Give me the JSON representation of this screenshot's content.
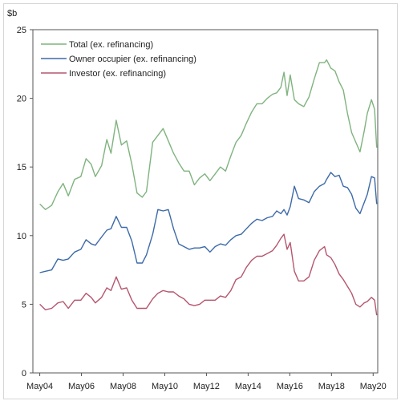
{
  "chart_data": {
    "type": "line",
    "ylabel": "$b",
    "ylim": [
      0,
      25
    ],
    "yticks": [
      0,
      5,
      10,
      15,
      20,
      25
    ],
    "xlim": [
      2004.0,
      2020.55
    ],
    "xticks": [
      {
        "x": 2004.33,
        "label": "May04"
      },
      {
        "x": 2006.33,
        "label": "May06"
      },
      {
        "x": 2008.33,
        "label": "May08"
      },
      {
        "x": 2010.33,
        "label": "May10"
      },
      {
        "x": 2012.33,
        "label": "May12"
      },
      {
        "x": 2014.33,
        "label": "May14"
      },
      {
        "x": 2016.33,
        "label": "May16"
      },
      {
        "x": 2018.33,
        "label": "May18"
      },
      {
        "x": 2020.33,
        "label": "May20"
      }
    ],
    "grid": false,
    "legend": "top-left",
    "series": [
      {
        "name": "Total (ex. refinancing)",
        "color": "#7fb37f",
        "points": [
          [
            2004.33,
            12.3
          ],
          [
            2004.6,
            11.9
          ],
          [
            2004.9,
            12.2
          ],
          [
            2005.2,
            13.2
          ],
          [
            2005.45,
            13.8
          ],
          [
            2005.7,
            12.9
          ],
          [
            2006.0,
            14.1
          ],
          [
            2006.3,
            14.3
          ],
          [
            2006.55,
            15.6
          ],
          [
            2006.8,
            15.2
          ],
          [
            2007.0,
            14.3
          ],
          [
            2007.3,
            15.1
          ],
          [
            2007.55,
            17.0
          ],
          [
            2007.75,
            16.0
          ],
          [
            2008.0,
            18.4
          ],
          [
            2008.25,
            16.6
          ],
          [
            2008.5,
            16.9
          ],
          [
            2008.75,
            15.2
          ],
          [
            2009.0,
            13.1
          ],
          [
            2009.25,
            12.8
          ],
          [
            2009.45,
            13.2
          ],
          [
            2009.75,
            16.8
          ],
          [
            2010.0,
            17.3
          ],
          [
            2010.25,
            17.8
          ],
          [
            2010.5,
            16.9
          ],
          [
            2010.75,
            16.0
          ],
          [
            2011.0,
            15.3
          ],
          [
            2011.25,
            14.7
          ],
          [
            2011.5,
            14.7
          ],
          [
            2011.75,
            13.7
          ],
          [
            2012.0,
            14.2
          ],
          [
            2012.25,
            14.5
          ],
          [
            2012.5,
            14.0
          ],
          [
            2012.75,
            14.5
          ],
          [
            2013.0,
            15.0
          ],
          [
            2013.25,
            14.7
          ],
          [
            2013.5,
            15.8
          ],
          [
            2013.75,
            16.8
          ],
          [
            2014.0,
            17.3
          ],
          [
            2014.25,
            18.2
          ],
          [
            2014.5,
            19.0
          ],
          [
            2014.75,
            19.6
          ],
          [
            2015.0,
            19.6
          ],
          [
            2015.25,
            20.0
          ],
          [
            2015.5,
            20.3
          ],
          [
            2015.7,
            20.4
          ],
          [
            2015.9,
            20.8
          ],
          [
            2016.05,
            21.9
          ],
          [
            2016.2,
            20.2
          ],
          [
            2016.35,
            21.7
          ],
          [
            2016.55,
            19.9
          ],
          [
            2016.75,
            19.6
          ],
          [
            2017.0,
            19.4
          ],
          [
            2017.25,
            20.1
          ],
          [
            2017.5,
            21.4
          ],
          [
            2017.75,
            22.6
          ],
          [
            2018.0,
            22.6
          ],
          [
            2018.1,
            22.8
          ],
          [
            2018.3,
            22.2
          ],
          [
            2018.5,
            22.0
          ],
          [
            2018.7,
            21.2
          ],
          [
            2018.9,
            20.6
          ],
          [
            2019.1,
            18.9
          ],
          [
            2019.3,
            17.5
          ],
          [
            2019.5,
            16.8
          ],
          [
            2019.7,
            16.1
          ],
          [
            2019.9,
            17.6
          ],
          [
            2020.05,
            18.9
          ],
          [
            2020.25,
            19.9
          ],
          [
            2020.4,
            19.2
          ],
          [
            2020.5,
            16.4
          ]
        ]
      },
      {
        "name": "Owner occupier (ex. refinancing)",
        "color": "#3d6aa8",
        "points": [
          [
            2004.33,
            7.3
          ],
          [
            2004.6,
            7.4
          ],
          [
            2004.9,
            7.5
          ],
          [
            2005.2,
            8.3
          ],
          [
            2005.45,
            8.2
          ],
          [
            2005.7,
            8.3
          ],
          [
            2006.0,
            8.8
          ],
          [
            2006.3,
            9.0
          ],
          [
            2006.55,
            9.7
          ],
          [
            2006.8,
            9.4
          ],
          [
            2007.0,
            9.3
          ],
          [
            2007.3,
            9.9
          ],
          [
            2007.55,
            10.4
          ],
          [
            2007.75,
            10.5
          ],
          [
            2008.0,
            11.4
          ],
          [
            2008.25,
            10.6
          ],
          [
            2008.5,
            10.6
          ],
          [
            2008.75,
            9.6
          ],
          [
            2009.0,
            8.0
          ],
          [
            2009.25,
            8.0
          ],
          [
            2009.45,
            8.6
          ],
          [
            2009.75,
            10.1
          ],
          [
            2010.0,
            11.9
          ],
          [
            2010.25,
            11.8
          ],
          [
            2010.5,
            11.9
          ],
          [
            2010.75,
            10.5
          ],
          [
            2011.0,
            9.4
          ],
          [
            2011.25,
            9.2
          ],
          [
            2011.5,
            9.0
          ],
          [
            2011.75,
            9.1
          ],
          [
            2012.0,
            9.1
          ],
          [
            2012.25,
            9.2
          ],
          [
            2012.5,
            8.8
          ],
          [
            2012.75,
            9.2
          ],
          [
            2013.0,
            9.4
          ],
          [
            2013.25,
            9.3
          ],
          [
            2013.5,
            9.7
          ],
          [
            2013.75,
            10.0
          ],
          [
            2014.0,
            10.1
          ],
          [
            2014.25,
            10.5
          ],
          [
            2014.5,
            10.9
          ],
          [
            2014.75,
            11.2
          ],
          [
            2015.0,
            11.1
          ],
          [
            2015.25,
            11.3
          ],
          [
            2015.5,
            11.4
          ],
          [
            2015.7,
            11.8
          ],
          [
            2015.9,
            11.6
          ],
          [
            2016.05,
            11.9
          ],
          [
            2016.2,
            11.5
          ],
          [
            2016.35,
            12.1
          ],
          [
            2016.55,
            13.6
          ],
          [
            2016.75,
            12.7
          ],
          [
            2017.0,
            12.6
          ],
          [
            2017.25,
            12.4
          ],
          [
            2017.5,
            13.2
          ],
          [
            2017.75,
            13.6
          ],
          [
            2018.0,
            13.8
          ],
          [
            2018.1,
            14.1
          ],
          [
            2018.3,
            14.6
          ],
          [
            2018.5,
            14.3
          ],
          [
            2018.7,
            14.4
          ],
          [
            2018.9,
            13.6
          ],
          [
            2019.1,
            13.5
          ],
          [
            2019.3,
            13.0
          ],
          [
            2019.5,
            12.0
          ],
          [
            2019.7,
            11.6
          ],
          [
            2019.9,
            12.4
          ],
          [
            2020.05,
            13.0
          ],
          [
            2020.25,
            14.3
          ],
          [
            2020.4,
            14.2
          ],
          [
            2020.5,
            12.3
          ]
        ]
      },
      {
        "name": "Investor (ex. refinancing)",
        "color": "#b5566e",
        "points": [
          [
            2004.33,
            5.0
          ],
          [
            2004.6,
            4.6
          ],
          [
            2004.9,
            4.7
          ],
          [
            2005.2,
            5.1
          ],
          [
            2005.45,
            5.2
          ],
          [
            2005.7,
            4.7
          ],
          [
            2006.0,
            5.3
          ],
          [
            2006.3,
            5.3
          ],
          [
            2006.55,
            5.8
          ],
          [
            2006.8,
            5.5
          ],
          [
            2007.0,
            5.1
          ],
          [
            2007.3,
            5.5
          ],
          [
            2007.55,
            6.2
          ],
          [
            2007.75,
            6.0
          ],
          [
            2008.0,
            7.0
          ],
          [
            2008.25,
            6.1
          ],
          [
            2008.5,
            6.2
          ],
          [
            2008.75,
            5.3
          ],
          [
            2009.0,
            4.7
          ],
          [
            2009.25,
            4.7
          ],
          [
            2009.45,
            4.7
          ],
          [
            2009.75,
            5.4
          ],
          [
            2010.0,
            5.8
          ],
          [
            2010.25,
            6.0
          ],
          [
            2010.5,
            5.9
          ],
          [
            2010.75,
            5.9
          ],
          [
            2011.0,
            5.6
          ],
          [
            2011.25,
            5.4
          ],
          [
            2011.5,
            5.0
          ],
          [
            2011.75,
            4.9
          ],
          [
            2012.0,
            5.0
          ],
          [
            2012.25,
            5.3
          ],
          [
            2012.5,
            5.3
          ],
          [
            2012.75,
            5.3
          ],
          [
            2013.0,
            5.6
          ],
          [
            2013.25,
            5.5
          ],
          [
            2013.5,
            6.0
          ],
          [
            2013.75,
            6.8
          ],
          [
            2014.0,
            7.0
          ],
          [
            2014.25,
            7.7
          ],
          [
            2014.5,
            8.2
          ],
          [
            2014.75,
            8.5
          ],
          [
            2015.0,
            8.5
          ],
          [
            2015.25,
            8.7
          ],
          [
            2015.5,
            8.9
          ],
          [
            2015.7,
            9.3
          ],
          [
            2015.9,
            9.8
          ],
          [
            2016.05,
            10.1
          ],
          [
            2016.2,
            9.0
          ],
          [
            2016.35,
            9.5
          ],
          [
            2016.55,
            7.4
          ],
          [
            2016.75,
            6.7
          ],
          [
            2017.0,
            6.7
          ],
          [
            2017.25,
            7.0
          ],
          [
            2017.5,
            8.2
          ],
          [
            2017.75,
            8.9
          ],
          [
            2018.0,
            9.2
          ],
          [
            2018.1,
            8.6
          ],
          [
            2018.3,
            8.4
          ],
          [
            2018.5,
            7.9
          ],
          [
            2018.7,
            7.2
          ],
          [
            2018.9,
            6.8
          ],
          [
            2019.1,
            6.3
          ],
          [
            2019.3,
            5.8
          ],
          [
            2019.5,
            5.0
          ],
          [
            2019.7,
            4.8
          ],
          [
            2019.9,
            5.1
          ],
          [
            2020.05,
            5.2
          ],
          [
            2020.25,
            5.5
          ],
          [
            2020.4,
            5.3
          ],
          [
            2020.5,
            4.2
          ]
        ]
      }
    ]
  }
}
